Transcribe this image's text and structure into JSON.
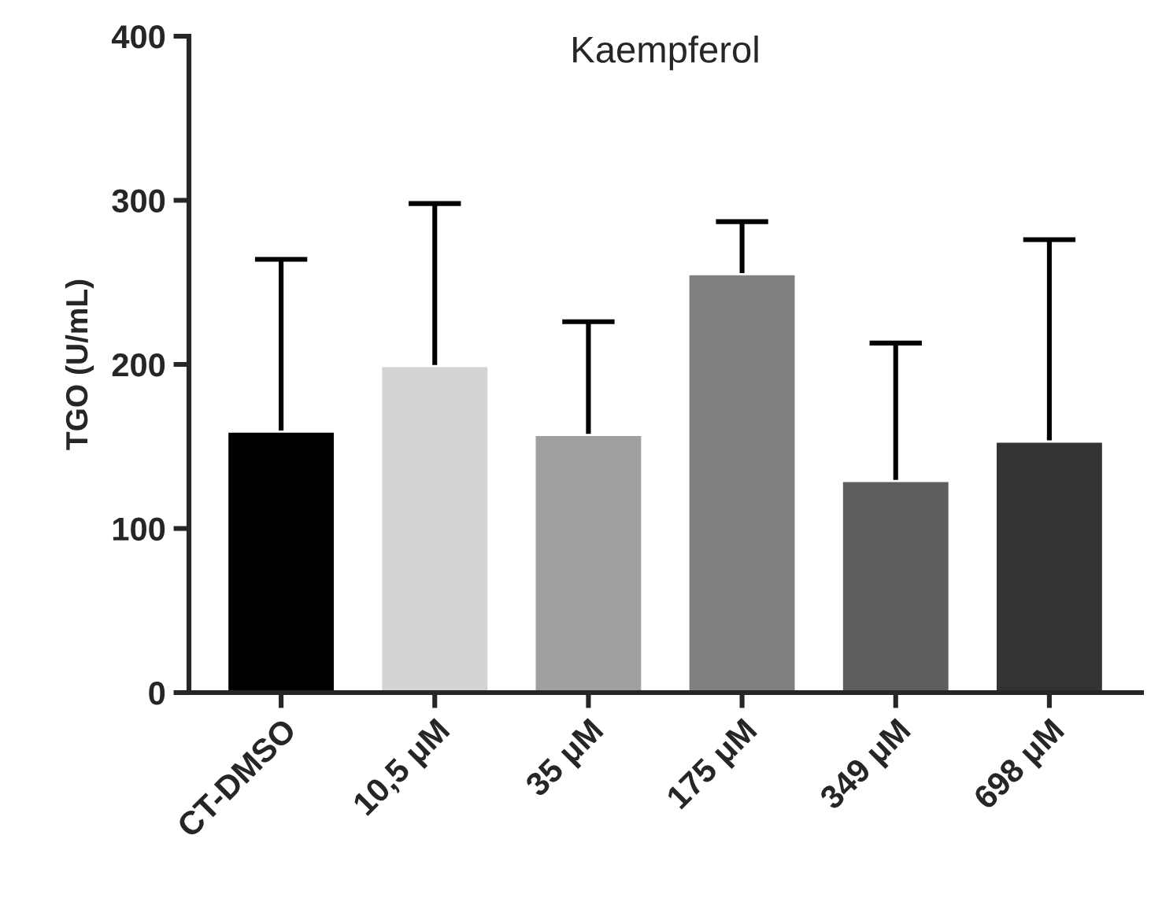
{
  "chart_data": {
    "type": "bar",
    "title": "Kaempferol",
    "ylabel": "TGO (U/mL)",
    "categories": [
      "CT-DMSO",
      "10,5 μM",
      "35 μM",
      "175 μM",
      "349 μM",
      "698 μM"
    ],
    "values": [
      159,
      199,
      157,
      255,
      129,
      153
    ],
    "errors": [
      [
        159,
        264
      ],
      [
        199,
        298
      ],
      [
        157,
        226
      ],
      [
        255,
        287
      ],
      [
        129,
        213
      ],
      [
        153,
        276
      ]
    ],
    "colors": [
      "#000000",
      "#d3d3d3",
      "#a0a0a0",
      "#808080",
      "#5e5e5e",
      "#333333"
    ],
    "ylim": [
      0,
      400
    ],
    "yticks": [
      0,
      100,
      200,
      300,
      400
    ],
    "grid": false
  }
}
